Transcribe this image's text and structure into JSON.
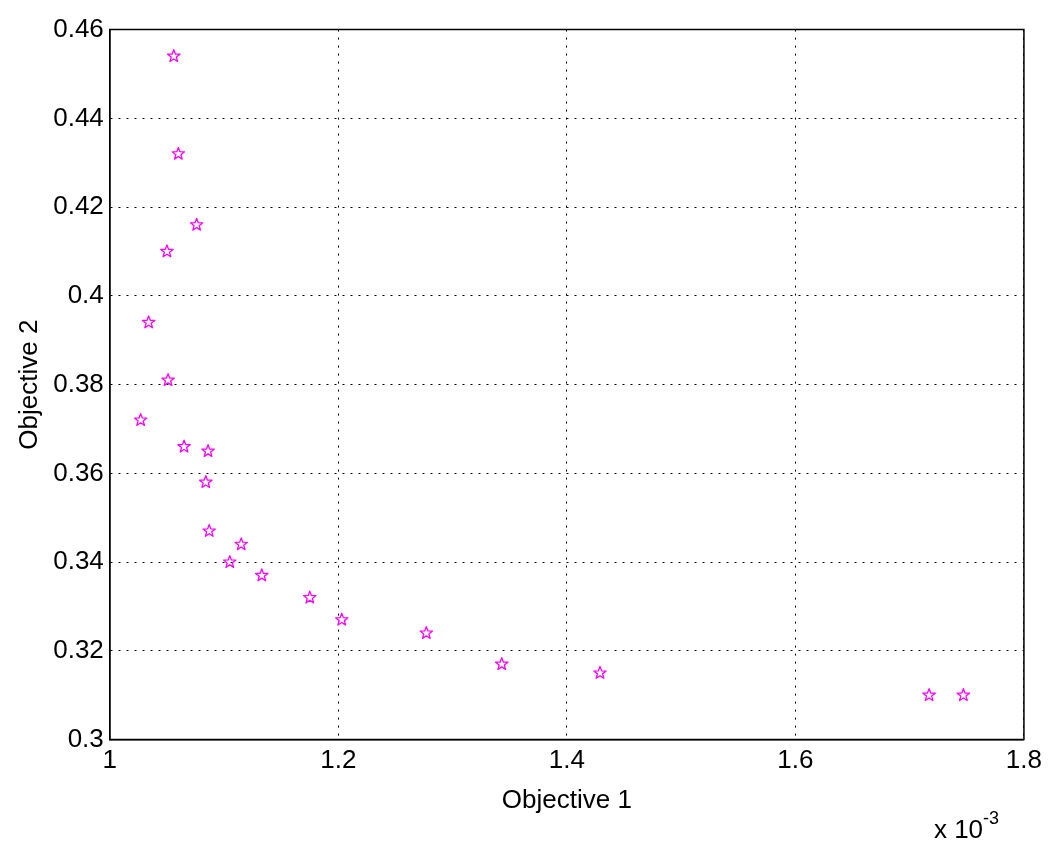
{
  "chart_data": {
    "type": "scatter",
    "xlabel": "Objective 1",
    "ylabel": "Objective 2",
    "annotations": [
      "x 10$^{-3}$"
    ],
    "x": [
      1.056,
      1.06,
      1.076,
      1.05,
      1.034,
      1.051,
      1.027,
      1.065,
      1.086,
      1.084,
      1.087,
      1.115,
      1.105,
      1.133,
      1.175,
      1.203,
      1.277,
      1.343,
      1.429,
      1.717,
      1.747
    ],
    "series": [
      {
        "color": "#ff00ff",
        "values": [
          0.454,
          0.432,
          0.416,
          0.41,
          0.394,
          0.381,
          0.372,
          0.366,
          0.365,
          0.358,
          0.347,
          0.344,
          0.34,
          0.337,
          0.332,
          0.327,
          0.324,
          0.317,
          0.315,
          0.31,
          0.31
        ]
      }
    ],
    "xlim": [
      1,
      1.8
    ],
    "xticks": [
      1,
      1.2,
      1.4,
      1.6,
      1.8
    ],
    "ylim": [
      0.3,
      0.46
    ],
    "yticks": [
      0.3,
      0.32,
      0.34,
      0.36,
      0.38,
      0.4,
      0.42,
      0.44,
      0.46
    ],
    "grid": true,
    "legend": false,
    "marker": "star"
  }
}
